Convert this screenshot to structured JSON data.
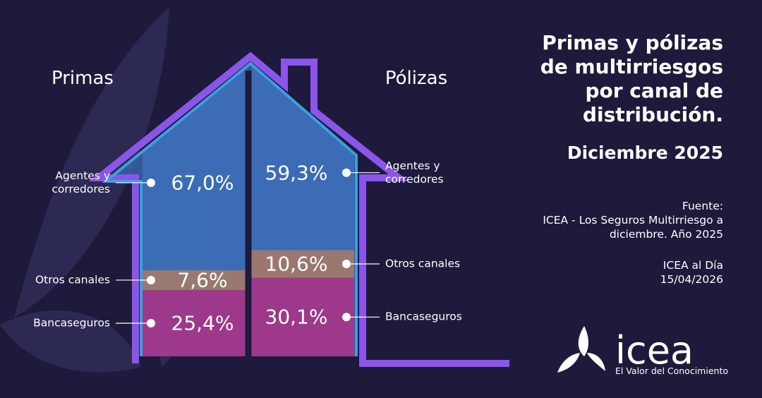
{
  "chart_data": {
    "type": "house-stacked-bar",
    "title": "Primas y pólizas de multirriesgos por canal de distribución.",
    "subtitle": "Diciembre 2025",
    "source_label": "Fuente:",
    "source": "ICEA - Los Seguros Multirriesgo a diciembre. Año 2025",
    "note": "ICEA al Día",
    "date": "15/04/2026",
    "categories": [
      "Primas",
      "Pólizas"
    ],
    "ylim": [
      0,
      100
    ],
    "series": [
      {
        "name": "Bancaseguros",
        "color": "#a8358a",
        "values": [
          25.4,
          30.1
        ],
        "value_labels": [
          "25,4%",
          "30,1%"
        ]
      },
      {
        "name": "Otros canales",
        "color": "#a57c6c",
        "values": [
          7.6,
          10.6
        ],
        "value_labels": [
          "7,6%",
          "10,6%"
        ]
      },
      {
        "name": "Agentes y corredores",
        "color": "#3c6fb8",
        "values": [
          67.0,
          59.3
        ],
        "value_labels": [
          "67,0%",
          "59,3%"
        ]
      }
    ]
  },
  "brand": {
    "logo": "icea",
    "tagline": "El Valor del Conocimiento"
  }
}
